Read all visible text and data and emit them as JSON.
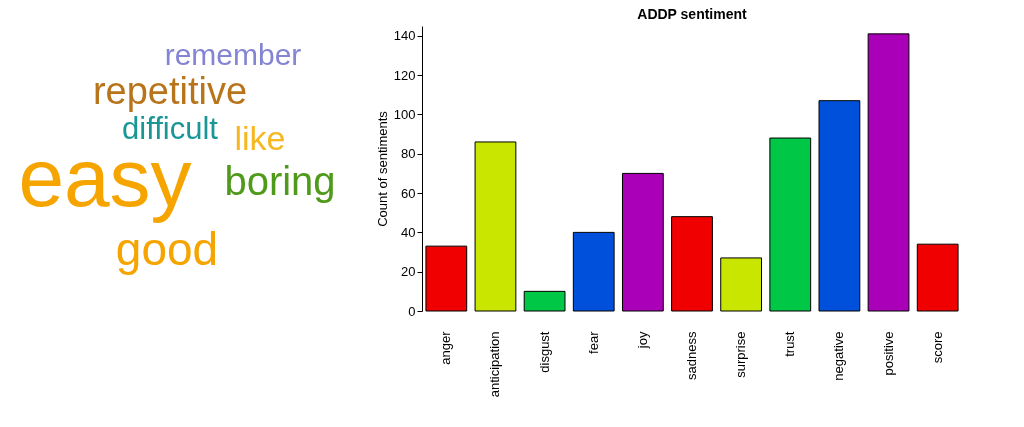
{
  "chart_data": [
    {
      "type": "other",
      "categories": [
        "remember",
        "repetitive",
        "difficult",
        "like",
        "easy",
        "boring",
        "good"
      ],
      "colors": [
        "#8484d4",
        "#b8741a",
        "#1a9696",
        "#f5b820",
        "#f5a400",
        "#4f9a1a",
        "#f5a400"
      ]
    },
    {
      "type": "bar",
      "title": "ADDP sentiment",
      "ylabel": "Count of sentiments",
      "categories": [
        "anger",
        "anticipation",
        "disgust",
        "fear",
        "joy",
        "sadness",
        "surprise",
        "trust",
        "negative",
        "positive",
        "score"
      ],
      "values": [
        33,
        86,
        10,
        40,
        70,
        48,
        27,
        88,
        107,
        141,
        34
      ],
      "colors": [
        "#f00000",
        "#c8e600",
        "#00c846",
        "#0050dc",
        "#aa00b8",
        "#f00000",
        "#c8e600",
        "#00c846",
        "#0050dc",
        "#aa00b8",
        "#f00000"
      ],
      "ylim": [
        0,
        145
      ],
      "yticks": [
        0,
        20,
        40,
        60,
        80,
        100,
        120,
        140
      ]
    }
  ]
}
